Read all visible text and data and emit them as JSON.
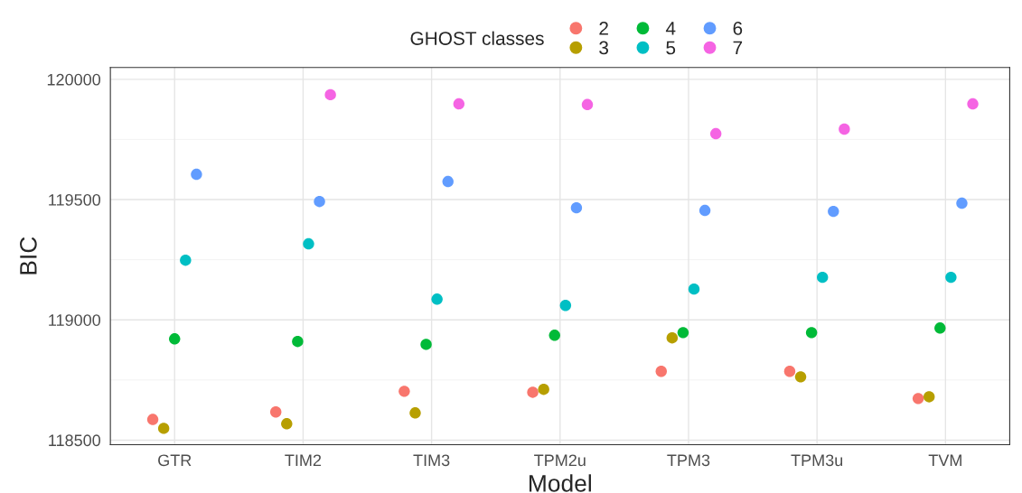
{
  "chart_data": {
    "type": "scatter",
    "xlabel": "Model",
    "ylabel": "BIC",
    "legend_title": "GHOST classes",
    "categories": [
      "GTR",
      "TIM2",
      "TIM3",
      "TPM2u",
      "TPM3",
      "TPM3u",
      "TVM"
    ],
    "series": [
      {
        "name": "2",
        "color": "#F8766D",
        "values": [
          118586,
          118617,
          118703,
          118699,
          118786,
          118786,
          118673
        ]
      },
      {
        "name": "3",
        "color": "#B79F00",
        "values": [
          118549,
          118568,
          118613,
          118711,
          118925,
          118763,
          118680
        ]
      },
      {
        "name": "4",
        "color": "#00BA38",
        "values": [
          118921,
          118910,
          118898,
          118936,
          118947,
          118947,
          118966
        ]
      },
      {
        "name": "5",
        "color": "#00BFC4",
        "values": [
          119248,
          119316,
          119086,
          119060,
          119128,
          119177,
          119177
        ]
      },
      {
        "name": "6",
        "color": "#619CFF",
        "values": [
          119605,
          119492,
          119575,
          119466,
          119455,
          119451,
          119485
        ]
      },
      {
        "name": "7",
        "color": "#F564E3",
        "values": [
          null,
          119936,
          119898,
          119895,
          119774,
          119793,
          119898
        ]
      }
    ],
    "ylim": [
      118481,
      120049
    ],
    "yticks": [
      118500,
      119000,
      119500,
      120000
    ],
    "grid": true,
    "legend": "top",
    "marker": "circle"
  }
}
